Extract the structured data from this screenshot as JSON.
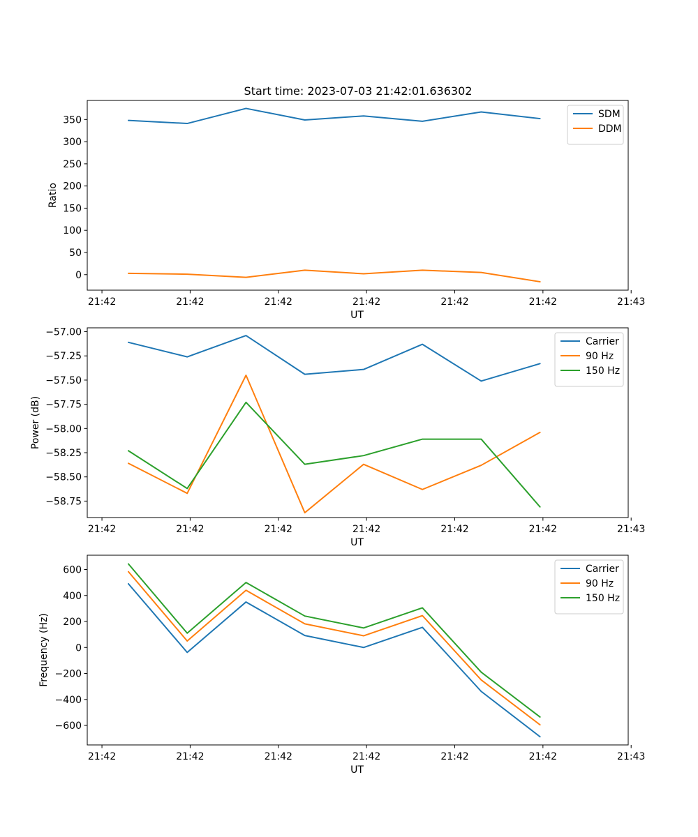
{
  "figure_title": "Start time: 2023-07-03 21:42:01.636302",
  "chart_data": [
    {
      "type": "line",
      "title": "Start time: 2023-07-03 21:42:01.636302",
      "xlabel": "UT",
      "ylabel": "Ratio",
      "x_tick_labels": [
        "21:42",
        "21:42",
        "21:42",
        "21:42",
        "21:42",
        "21:42",
        "21:43"
      ],
      "y_ticks": [
        0,
        50,
        100,
        150,
        200,
        250,
        300,
        350
      ],
      "y_tick_labels": [
        "0",
        "50",
        "100",
        "150",
        "200",
        "250",
        "300",
        "350"
      ],
      "ylim": [
        -35,
        393
      ],
      "x_points": [
        1,
        2,
        3,
        4,
        5,
        6,
        7,
        8
      ],
      "xlim": [
        0.3,
        9.5
      ],
      "x_ticks": [
        0.55,
        2.05,
        3.55,
        5.05,
        6.55,
        8.05,
        9.55
      ],
      "legend": "top-right",
      "series": [
        {
          "name": "SDM",
          "color": "#1f77b4",
          "values": [
            348,
            341,
            375,
            349,
            358,
            346,
            367,
            352
          ]
        },
        {
          "name": "DDM",
          "color": "#ff7f0e",
          "values": [
            3,
            1,
            -6,
            10,
            2,
            10,
            5,
            -16
          ]
        }
      ]
    },
    {
      "type": "line",
      "title": "",
      "xlabel": "UT",
      "ylabel": "Power (dB)",
      "x_tick_labels": [
        "21:42",
        "21:42",
        "21:42",
        "21:42",
        "21:42",
        "21:42",
        "21:43"
      ],
      "y_ticks": [
        -57.0,
        -57.25,
        -57.5,
        -57.75,
        -58.0,
        -58.25,
        -58.5,
        -58.75
      ],
      "y_tick_labels": [
        "−57.00",
        "−57.25",
        "−57.50",
        "−57.75",
        "−58.00",
        "−58.25",
        "−58.50",
        "−58.75"
      ],
      "ylim": [
        -58.92,
        -56.96
      ],
      "x_points": [
        1,
        2,
        3,
        4,
        5,
        6,
        7,
        8
      ],
      "xlim": [
        0.3,
        9.5
      ],
      "x_ticks": [
        0.55,
        2.05,
        3.55,
        5.05,
        6.55,
        8.05,
        9.55
      ],
      "legend": "top-right",
      "series": [
        {
          "name": "Carrier",
          "color": "#1f77b4",
          "values": [
            -57.11,
            -57.26,
            -57.04,
            -57.44,
            -57.39,
            -57.13,
            -57.51,
            -57.33
          ]
        },
        {
          "name": "90 Hz",
          "color": "#ff7f0e",
          "values": [
            -58.36,
            -58.67,
            -57.45,
            -58.87,
            -58.37,
            -58.63,
            -58.38,
            -58.04
          ]
        },
        {
          "name": "150 Hz",
          "color": "#2ca02c",
          "values": [
            -58.23,
            -58.62,
            -57.73,
            -58.37,
            -58.28,
            -58.11,
            -58.11,
            -58.81
          ]
        }
      ]
    },
    {
      "type": "line",
      "title": "",
      "xlabel": "UT",
      "ylabel": "Frequency (Hz)",
      "x_tick_labels": [
        "21:42",
        "21:42",
        "21:42",
        "21:42",
        "21:42",
        "21:42",
        "21:43"
      ],
      "y_ticks": [
        -600,
        -400,
        -200,
        0,
        200,
        400,
        600
      ],
      "y_tick_labels": [
        "−600",
        "−400",
        "−200",
        "0",
        "200",
        "400",
        "600"
      ],
      "ylim": [
        -750,
        710
      ],
      "x_points": [
        1,
        2,
        3,
        4,
        5,
        6,
        7,
        8
      ],
      "xlim": [
        0.3,
        9.5
      ],
      "x_ticks": [
        0.55,
        2.05,
        3.55,
        5.05,
        6.55,
        8.05,
        9.55
      ],
      "legend": "top-right",
      "series": [
        {
          "name": "Carrier",
          "color": "#1f77b4",
          "values": [
            490,
            -38,
            350,
            92,
            0,
            155,
            -338,
            -687
          ]
        },
        {
          "name": "90 Hz",
          "color": "#ff7f0e",
          "values": [
            583,
            50,
            440,
            182,
            90,
            245,
            -250,
            -595
          ]
        },
        {
          "name": "150 Hz",
          "color": "#2ca02c",
          "values": [
            643,
            110,
            500,
            242,
            150,
            305,
            -190,
            -535
          ]
        }
      ]
    }
  ]
}
